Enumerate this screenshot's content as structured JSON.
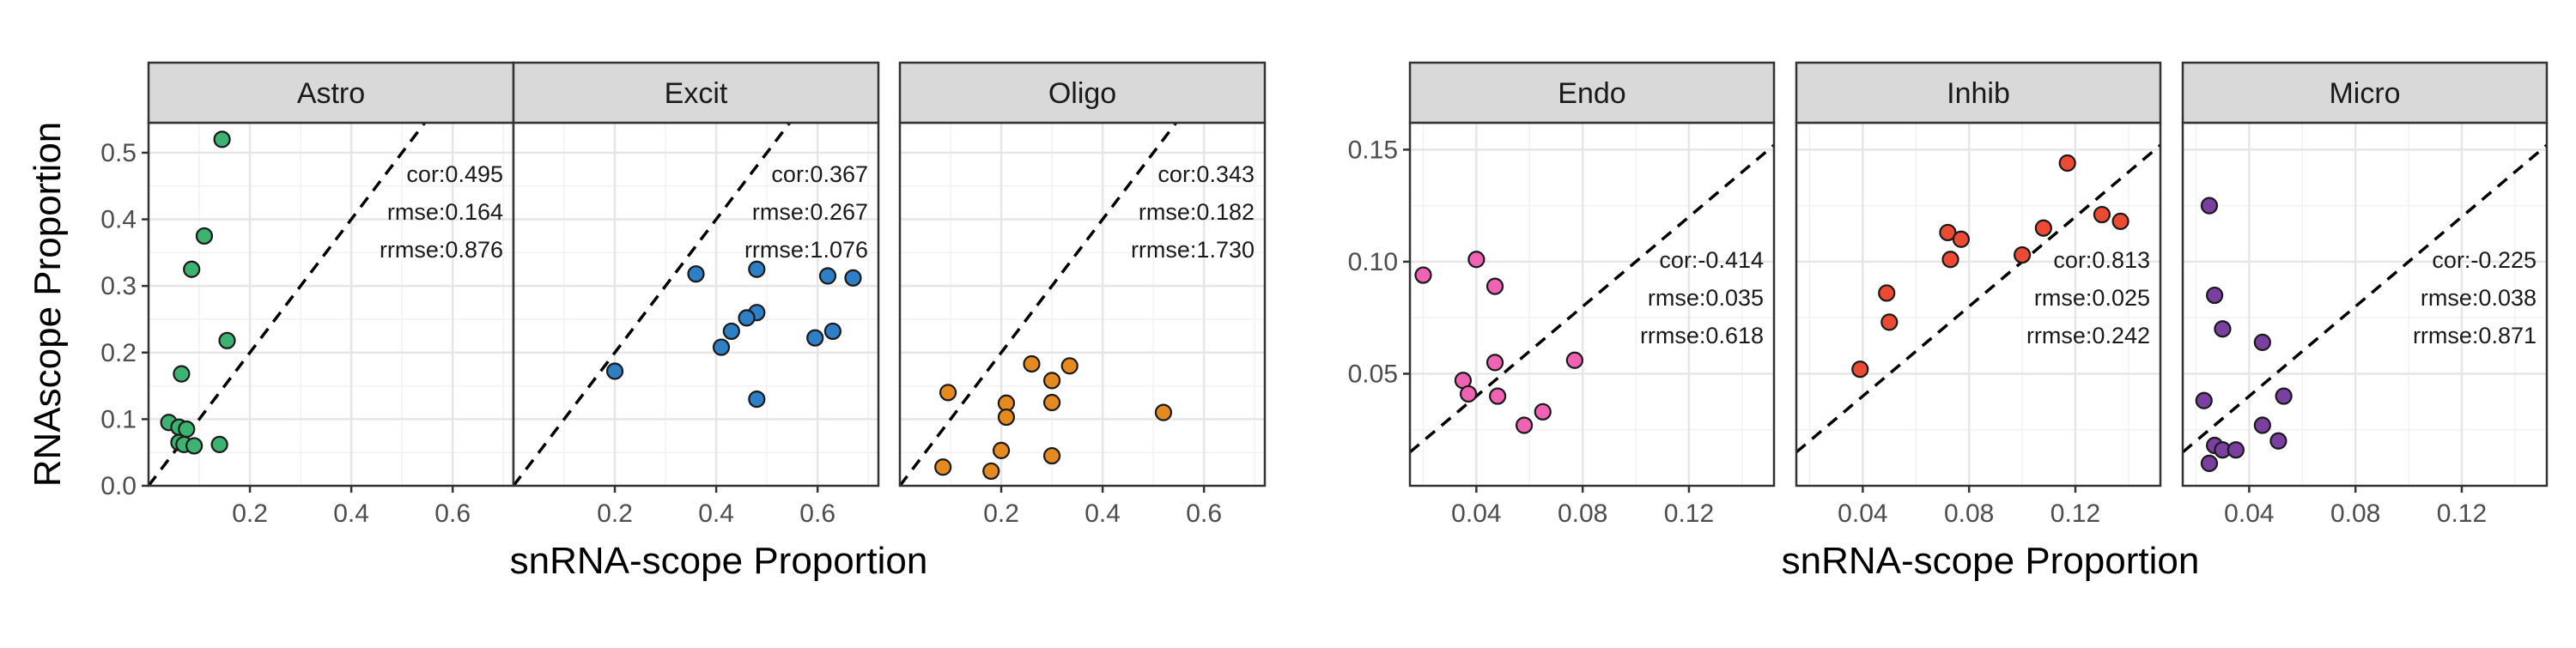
{
  "chart_data": {
    "type": "scatter",
    "groups": [
      {
        "ylabel": "RNAscope Proportion",
        "xlabel": "snRNA-scope Proportion",
        "xlim": [
          0.0,
          0.72
        ],
        "ylim": [
          0.0,
          0.545
        ],
        "xticks": [
          0.2,
          0.4,
          0.6
        ],
        "xtick_labels": [
          "0.2",
          "0.4",
          "0.6"
        ],
        "yticks": [
          0.0,
          0.1,
          0.2,
          0.3,
          0.4,
          0.5
        ],
        "ytick_labels": [
          "0.0",
          "0.1",
          "0.2",
          "0.3",
          "0.4",
          "0.5"
        ],
        "panels": [
          {
            "name": "Astro",
            "color": "#3cb371",
            "stats": [
              "cor:0.495",
              "rmse:0.164",
              "rrmse:0.876"
            ],
            "points": [
              {
                "x": 0.145,
                "y": 0.52
              },
              {
                "x": 0.11,
                "y": 0.375
              },
              {
                "x": 0.085,
                "y": 0.325
              },
              {
                "x": 0.155,
                "y": 0.218
              },
              {
                "x": 0.065,
                "y": 0.168
              },
              {
                "x": 0.04,
                "y": 0.095
              },
              {
                "x": 0.06,
                "y": 0.088
              },
              {
                "x": 0.075,
                "y": 0.085
              },
              {
                "x": 0.06,
                "y": 0.065
              },
              {
                "x": 0.07,
                "y": 0.062
              },
              {
                "x": 0.09,
                "y": 0.06
              },
              {
                "x": 0.14,
                "y": 0.062
              }
            ]
          },
          {
            "name": "Excit",
            "color": "#2e7fc6",
            "stats": [
              "cor:0.367",
              "rmse:0.267",
              "rrmse:1.076"
            ],
            "points": [
              {
                "x": 0.2,
                "y": 0.172
              },
              {
                "x": 0.36,
                "y": 0.318
              },
              {
                "x": 0.48,
                "y": 0.325
              },
              {
                "x": 0.62,
                "y": 0.315
              },
              {
                "x": 0.67,
                "y": 0.312
              },
              {
                "x": 0.48,
                "y": 0.26
              },
              {
                "x": 0.46,
                "y": 0.252
              },
              {
                "x": 0.43,
                "y": 0.232
              },
              {
                "x": 0.41,
                "y": 0.208
              },
              {
                "x": 0.595,
                "y": 0.222
              },
              {
                "x": 0.63,
                "y": 0.232
              },
              {
                "x": 0.48,
                "y": 0.13
              }
            ]
          },
          {
            "name": "Oligo",
            "color": "#e58a1f",
            "stats": [
              "cor:0.343",
              "rmse:0.182",
              "rrmse:1.730"
            ],
            "points": [
              {
                "x": 0.26,
                "y": 0.183
              },
              {
                "x": 0.335,
                "y": 0.18
              },
              {
                "x": 0.3,
                "y": 0.158
              },
              {
                "x": 0.095,
                "y": 0.14
              },
              {
                "x": 0.21,
                "y": 0.124
              },
              {
                "x": 0.3,
                "y": 0.125
              },
              {
                "x": 0.52,
                "y": 0.11
              },
              {
                "x": 0.21,
                "y": 0.103
              },
              {
                "x": 0.2,
                "y": 0.053
              },
              {
                "x": 0.3,
                "y": 0.045
              },
              {
                "x": 0.085,
                "y": 0.028
              },
              {
                "x": 0.18,
                "y": 0.022
              }
            ]
          }
        ]
      },
      {
        "ylabel": "",
        "xlabel": "snRNA-scope Proportion",
        "xlim": [
          0.015,
          0.152
        ],
        "ylim": [
          0.0,
          0.162
        ],
        "xticks": [
          0.04,
          0.08,
          0.12
        ],
        "xtick_labels": [
          "0.04",
          "0.08",
          "0.12"
        ],
        "yticks": [
          0.05,
          0.1,
          0.15
        ],
        "ytick_labels": [
          "0.05",
          "0.10",
          "0.15"
        ],
        "panels": [
          {
            "name": "Endo",
            "color": "#f062b4",
            "stats": [
              "cor:-0.414",
              "rmse:0.035",
              "rrmse:0.618"
            ],
            "points": [
              {
                "x": 0.02,
                "y": 0.094
              },
              {
                "x": 0.04,
                "y": 0.101
              },
              {
                "x": 0.047,
                "y": 0.089
              },
              {
                "x": 0.077,
                "y": 0.056
              },
              {
                "x": 0.047,
                "y": 0.055
              },
              {
                "x": 0.035,
                "y": 0.047
              },
              {
                "x": 0.037,
                "y": 0.041
              },
              {
                "x": 0.048,
                "y": 0.04
              },
              {
                "x": 0.065,
                "y": 0.033
              },
              {
                "x": 0.058,
                "y": 0.027
              }
            ]
          },
          {
            "name": "Inhib",
            "color": "#ec4a33",
            "stats": [
              "cor:0.813",
              "rmse:0.025",
              "rrmse:0.242"
            ],
            "points": [
              {
                "x": 0.117,
                "y": 0.144
              },
              {
                "x": 0.13,
                "y": 0.121
              },
              {
                "x": 0.137,
                "y": 0.118
              },
              {
                "x": 0.108,
                "y": 0.115
              },
              {
                "x": 0.072,
                "y": 0.113
              },
              {
                "x": 0.077,
                "y": 0.11
              },
              {
                "x": 0.1,
                "y": 0.103
              },
              {
                "x": 0.073,
                "y": 0.101
              },
              {
                "x": 0.049,
                "y": 0.086
              },
              {
                "x": 0.05,
                "y": 0.073
              },
              {
                "x": 0.039,
                "y": 0.052
              }
            ]
          },
          {
            "name": "Micro",
            "color": "#7a3fa0",
            "stats": [
              "cor:-0.225",
              "rmse:0.038",
              "rrmse:0.871"
            ],
            "points": [
              {
                "x": 0.025,
                "y": 0.125
              },
              {
                "x": 0.027,
                "y": 0.085
              },
              {
                "x": 0.03,
                "y": 0.07
              },
              {
                "x": 0.045,
                "y": 0.064
              },
              {
                "x": 0.053,
                "y": 0.04
              },
              {
                "x": 0.023,
                "y": 0.038
              },
              {
                "x": 0.045,
                "y": 0.027
              },
              {
                "x": 0.051,
                "y": 0.02
              },
              {
                "x": 0.027,
                "y": 0.018
              },
              {
                "x": 0.03,
                "y": 0.016
              },
              {
                "x": 0.035,
                "y": 0.016
              },
              {
                "x": 0.025,
                "y": 0.01
              }
            ]
          }
        ]
      }
    ]
  }
}
